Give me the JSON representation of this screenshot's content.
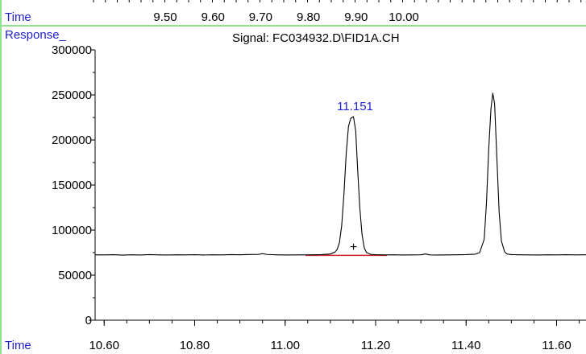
{
  "top_panel": {
    "axis_label": "Time",
    "ticks": [
      "9.50",
      "9.60",
      "9.70",
      "9.80",
      "9.90",
      "10.00"
    ]
  },
  "chart_data": {
    "type": "line",
    "title": "Signal: FC034932.D\\FID1A.CH",
    "ylabel": "Response_",
    "xlabel": "Time",
    "xlim": [
      10.58,
      11.665
    ],
    "ylim": [
      0,
      300000
    ],
    "x_ticks": [
      10.6,
      10.8,
      11.0,
      11.2,
      11.4,
      11.6
    ],
    "x_tick_labels": [
      "10.60",
      "10.80",
      "11.00",
      "11.20",
      "11.40",
      "11.60"
    ],
    "y_ticks": [
      0,
      50000,
      100000,
      150000,
      200000,
      250000,
      300000
    ],
    "y_tick_labels": [
      "0",
      "50000",
      "100000",
      "150000",
      "200000",
      "250000",
      "300000"
    ],
    "grid": false,
    "series": [
      {
        "x": [
          10.58,
          10.6,
          10.62,
          10.64,
          10.66,
          10.68,
          10.7,
          10.72,
          10.74,
          10.76,
          10.78,
          10.8,
          10.82,
          10.84,
          10.86,
          10.88,
          10.9,
          10.92,
          10.94,
          10.95,
          10.96,
          10.98,
          11.0,
          11.02,
          11.04,
          11.06,
          11.08,
          11.1,
          11.11,
          11.115,
          11.12,
          11.125,
          11.13,
          11.135,
          11.14,
          11.145,
          11.151,
          11.156,
          11.16,
          11.165,
          11.17,
          11.175,
          11.18,
          11.19,
          11.2,
          11.22,
          11.24,
          11.26,
          11.28,
          11.3,
          11.31,
          11.32,
          11.34,
          11.36,
          11.38,
          11.4,
          11.42,
          11.43,
          11.44,
          11.445,
          11.45,
          11.455,
          11.459,
          11.463,
          11.468,
          11.473,
          11.478,
          11.485,
          11.49,
          11.5,
          11.52,
          11.54,
          11.56,
          11.58,
          11.6,
          11.62,
          11.64,
          11.665
        ],
        "y": [
          72500,
          72500,
          72700,
          72300,
          72600,
          72400,
          72800,
          72500,
          72400,
          72600,
          72500,
          72700,
          72400,
          72600,
          72500,
          72800,
          72600,
          72900,
          73000,
          73800,
          73000,
          72600,
          72400,
          72500,
          72500,
          72600,
          72800,
          73500,
          75500,
          78500,
          86000,
          105000,
          140000,
          185000,
          215000,
          224000,
          226000,
          210000,
          170000,
          125000,
          95000,
          80000,
          75000,
          73000,
          72700,
          72500,
          72600,
          72400,
          72500,
          72600,
          73500,
          72500,
          72400,
          72500,
          72600,
          72800,
          73300,
          75000,
          90000,
          130000,
          190000,
          235000,
          252000,
          240000,
          180000,
          120000,
          88000,
          76000,
          73500,
          72800,
          72600,
          72500,
          72400,
          72600,
          72500,
          72700,
          72500,
          72600
        ],
        "color": "#000000"
      }
    ],
    "peak_label": {
      "text": "11.151",
      "x": 11.151,
      "y": 226000,
      "color": "#1f1fcc"
    },
    "baseline": {
      "x": [
        11.045,
        11.225
      ],
      "y": [
        72000,
        72000
      ],
      "color": "#cc2020"
    },
    "marker": {
      "symbol": "+",
      "x": 11.151,
      "y": 82000
    }
  },
  "colors": {
    "label_blue": "#1f1fcc",
    "frame_green": "#8fe08f",
    "baseline_red": "#cc2020"
  }
}
